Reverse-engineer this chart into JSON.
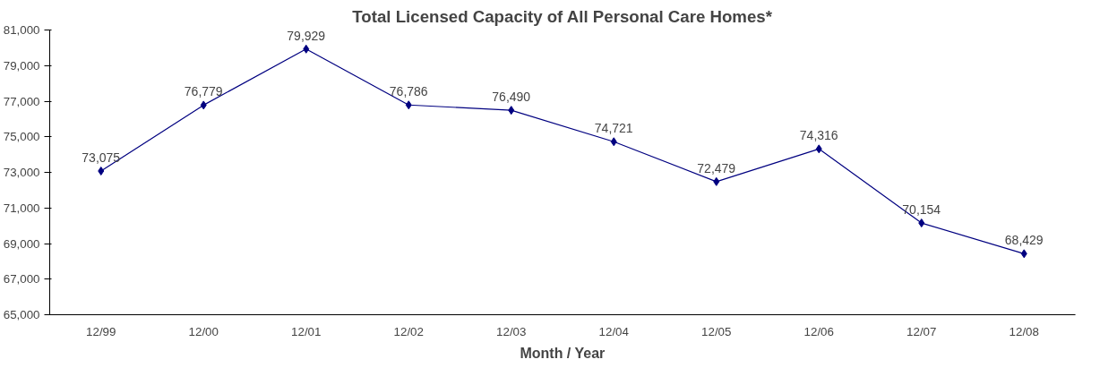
{
  "chart_data": {
    "type": "line",
    "title": "Total Licensed Capacity of All Personal Care Homes*",
    "xlabel": "Month / Year",
    "categories": [
      "12/99",
      "12/00",
      "12/01",
      "12/02",
      "12/03",
      "12/04",
      "12/05",
      "12/06",
      "12/07",
      "12/08"
    ],
    "series": [
      {
        "color": "#000080",
        "values": [
          73075,
          76779,
          79929,
          76786,
          76490,
          74721,
          72479,
          74316,
          70154,
          68429
        ],
        "value_labels": [
          "73,075",
          "76,779",
          "79,929",
          "76,786",
          "76,490",
          "74,721",
          "72,479",
          "74,316",
          "70,154",
          "68,429"
        ]
      }
    ],
    "ylim": [
      65000,
      81000
    ],
    "yticks": [
      {
        "value": 65000,
        "label": "65,000"
      },
      {
        "value": 67000,
        "label": "67,000"
      },
      {
        "value": 69000,
        "label": "69,000"
      },
      {
        "value": 71000,
        "label": "71,000"
      },
      {
        "value": 73000,
        "label": "73,000"
      },
      {
        "value": 75000,
        "label": "75,000"
      },
      {
        "value": 77000,
        "label": "77,000"
      },
      {
        "value": 79000,
        "label": "79,000"
      },
      {
        "value": 81000,
        "label": "81,000"
      }
    ],
    "grid": false,
    "marker": "diamond",
    "line_style": "solid"
  }
}
